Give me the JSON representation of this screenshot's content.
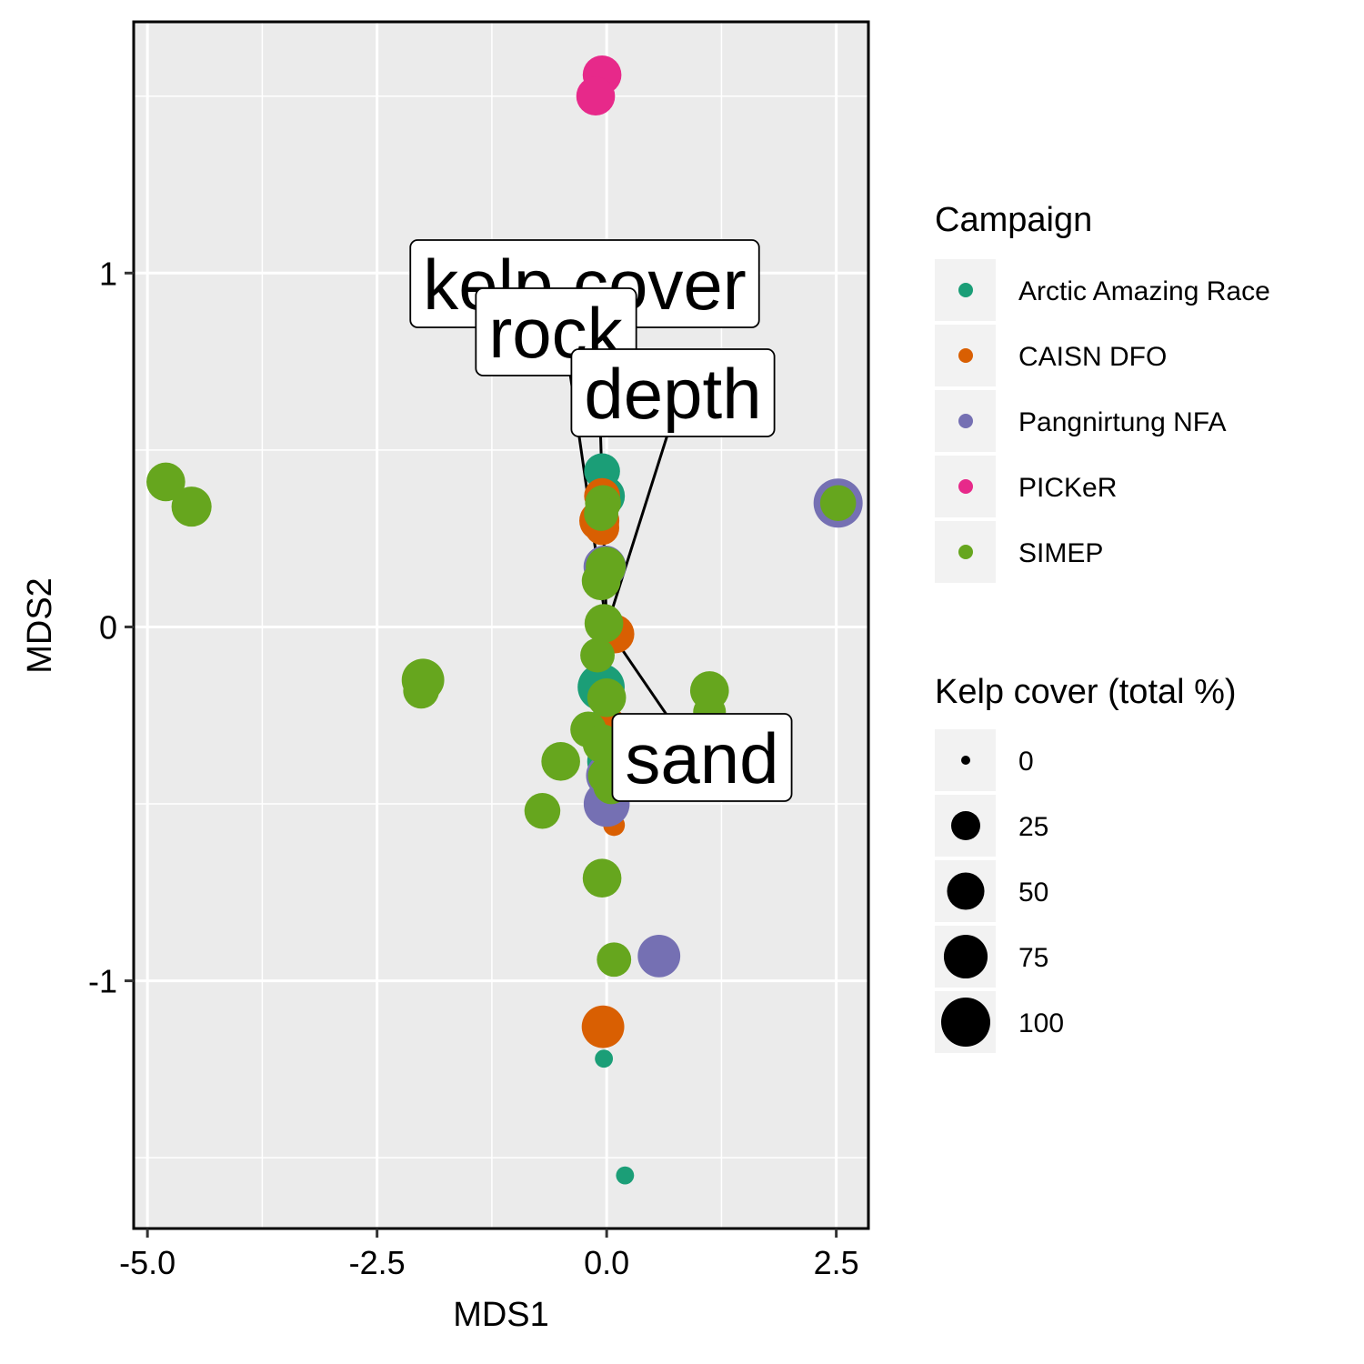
{
  "chart_data": {
    "type": "scatter",
    "xlabel": "MDS1",
    "ylabel": "MDS2",
    "xlim": [
      -5.15,
      2.85
    ],
    "ylim": [
      -1.7,
      1.71
    ],
    "x_ticks": [
      -5.0,
      -2.5,
      0.0,
      2.5
    ],
    "x_tick_labels": [
      "-5.0",
      "-2.5",
      "0.0",
      "2.5"
    ],
    "y_ticks": [
      -1,
      0,
      1
    ],
    "y_tick_labels": [
      "-1",
      "0",
      "1"
    ],
    "grid": true,
    "legend_position": "right",
    "colors": {
      "panel": "#EBEBEB",
      "grid": "#FFFFFF",
      "legend_key_bg": "#F2F2F2"
    },
    "color_legend": {
      "title": "Campaign",
      "entries": [
        {
          "label": "Arctic Amazing Race",
          "color": "#1B9E77"
        },
        {
          "label": "CAISN DFO",
          "color": "#D95F02"
        },
        {
          "label": "Pangnirtung NFA",
          "color": "#7570B3"
        },
        {
          "label": "PICKeR",
          "color": "#E7298A"
        },
        {
          "label": "SIMEP",
          "color": "#66A61E"
        }
      ]
    },
    "size_legend": {
      "title": "Kelp cover (total %)",
      "entries": [
        {
          "label": "0",
          "value": 0
        },
        {
          "label": "25",
          "value": 25
        },
        {
          "label": "50",
          "value": 50
        },
        {
          "label": "75",
          "value": 75
        },
        {
          "label": "100",
          "value": 100
        }
      ]
    },
    "vectors": [
      {
        "label": "kelp cover",
        "x": -0.12,
        "y": 0.98
      },
      {
        "label": "rock",
        "x": -0.45,
        "y": 0.81
      },
      {
        "label": "depth",
        "x": 0.78,
        "y": 0.64
      },
      {
        "label": "sand",
        "x": 1.0,
        "y": -0.38
      }
    ],
    "series": [
      {
        "name": "PICKeR",
        "points": [
          {
            "x": -0.05,
            "y": 1.56,
            "kelp": 55
          },
          {
            "x": -0.12,
            "y": 1.5,
            "kelp": 55
          }
        ]
      },
      {
        "name": "Arctic Amazing Race",
        "points": [
          {
            "x": -0.03,
            "y": 0.85,
            "kelp": 75
          },
          {
            "x": -0.03,
            "y": 0.73,
            "kelp": 40
          },
          {
            "x": -0.05,
            "y": 0.44,
            "kelp": 45
          },
          {
            "x": -0.02,
            "y": 0.37,
            "kelp": 60
          },
          {
            "x": -0.06,
            "y": -0.17,
            "kelp": 90
          },
          {
            "x": -0.01,
            "y": -0.28,
            "kelp": 50
          },
          {
            "x": 0.02,
            "y": -0.38,
            "kelp": 70
          },
          {
            "x": -0.03,
            "y": -1.22,
            "kelp": 5
          },
          {
            "x": 0.2,
            "y": -1.55,
            "kelp": 5
          }
        ]
      },
      {
        "name": "CAISN DFO",
        "points": [
          {
            "x": -0.05,
            "y": 0.37,
            "kelp": 45
          },
          {
            "x": -0.08,
            "y": 0.3,
            "kelp": 60
          },
          {
            "x": -0.05,
            "y": 0.28,
            "kelp": 40
          },
          {
            "x": 0.09,
            "y": -0.02,
            "kelp": 55
          },
          {
            "x": 0.04,
            "y": -0.28,
            "kelp": 40
          },
          {
            "x": 1.12,
            "y": -0.39,
            "kelp": 65
          },
          {
            "x": 0.08,
            "y": -0.56,
            "kelp": 10
          },
          {
            "x": -0.04,
            "y": -1.13,
            "kelp": 70
          }
        ]
      },
      {
        "name": "Pangnirtung NFA",
        "points": [
          {
            "x": 2.52,
            "y": 0.35,
            "kelp": 100
          },
          {
            "x": -0.02,
            "y": 0.17,
            "kelp": 70
          },
          {
            "x": 0.02,
            "y": -0.42,
            "kelp": 80
          },
          {
            "x": 0.0,
            "y": -0.5,
            "kelp": 85
          },
          {
            "x": 0.57,
            "y": -0.93,
            "kelp": 70
          }
        ]
      },
      {
        "name": "SIMEP",
        "points": [
          {
            "x": -4.8,
            "y": 0.41,
            "kelp": 55
          },
          {
            "x": -4.52,
            "y": 0.34,
            "kelp": 60
          },
          {
            "x": 2.52,
            "y": 0.35,
            "kelp": 45
          },
          {
            "x": -0.04,
            "y": 0.35,
            "kelp": 45
          },
          {
            "x": -0.06,
            "y": 0.32,
            "kelp": 40
          },
          {
            "x": -0.01,
            "y": 0.17,
            "kelp": 60
          },
          {
            "x": -0.06,
            "y": 0.13,
            "kelp": 55
          },
          {
            "x": -0.03,
            "y": 0.01,
            "kelp": 55
          },
          {
            "x": -0.1,
            "y": -0.08,
            "kelp": 40
          },
          {
            "x": -2.0,
            "y": -0.15,
            "kelp": 70
          },
          {
            "x": -2.02,
            "y": -0.18,
            "kelp": 45
          },
          {
            "x": 1.12,
            "y": -0.18,
            "kelp": 55
          },
          {
            "x": 1.12,
            "y": -0.24,
            "kelp": 35
          },
          {
            "x": 0.0,
            "y": -0.2,
            "kelp": 55
          },
          {
            "x": -0.2,
            "y": -0.29,
            "kelp": 45
          },
          {
            "x": -0.05,
            "y": -0.33,
            "kelp": 55
          },
          {
            "x": -0.5,
            "y": -0.38,
            "kelp": 55
          },
          {
            "x": 0.0,
            "y": -0.42,
            "kelp": 50
          },
          {
            "x": 0.05,
            "y": -0.45,
            "kelp": 45
          },
          {
            "x": -0.7,
            "y": -0.52,
            "kelp": 45
          },
          {
            "x": -0.05,
            "y": -0.71,
            "kelp": 55
          },
          {
            "x": 0.08,
            "y": -0.94,
            "kelp": 40
          }
        ]
      }
    ]
  }
}
